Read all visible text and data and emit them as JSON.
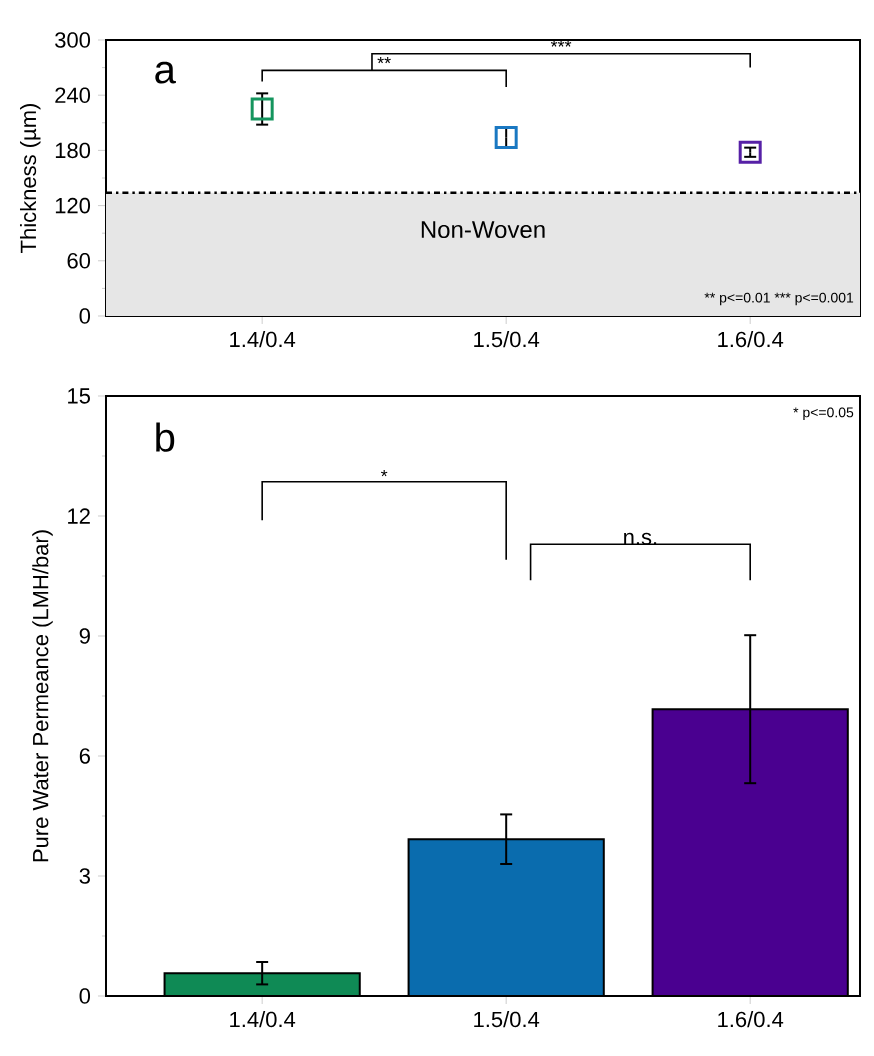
{
  "chart_data": [
    {
      "type": "scatter",
      "categories": [
        "1.4/0.4",
        "1.5/0.4",
        "1.6/0.4"
      ],
      "values": [
        225,
        194,
        178
      ],
      "errors": [
        17,
        11,
        5
      ],
      "colors": [
        "#15955e",
        "#1a78c2",
        "#5620a6"
      ],
      "marker": "square",
      "ylabel": "Thickness (µm)",
      "ylim": [
        0,
        300
      ],
      "yticks": [
        0,
        60,
        120,
        180,
        240,
        300
      ],
      "bands": [
        {
          "axis": "y",
          "from": 0,
          "to": 134,
          "label": "Non-Woven",
          "color": "#e6e6e6"
        }
      ],
      "ref_lines": [
        {
          "axis": "y",
          "value": 134,
          "line_style": "dashdot",
          "color": "#000000"
        }
      ],
      "annotations": [
        "a",
        "**",
        "***",
        "** p<=0.01  *** p<=0.001"
      ]
    },
    {
      "type": "bar",
      "categories": [
        "1.4/0.4",
        "1.5/0.4",
        "1.6/0.4"
      ],
      "values": [
        0.57,
        3.92,
        7.17
      ],
      "errors": [
        0.28,
        0.62,
        1.85
      ],
      "colors": [
        "#0f8a55",
        "#0a6cae",
        "#4a0090"
      ],
      "ylabel": "Pure Water Permeance (LMH/bar)",
      "ylim": [
        0,
        15
      ],
      "yticks": [
        0,
        3,
        6,
        9,
        12,
        15
      ],
      "annotations": [
        "b",
        "*",
        "n.s.",
        "* p<=0.05"
      ]
    }
  ]
}
